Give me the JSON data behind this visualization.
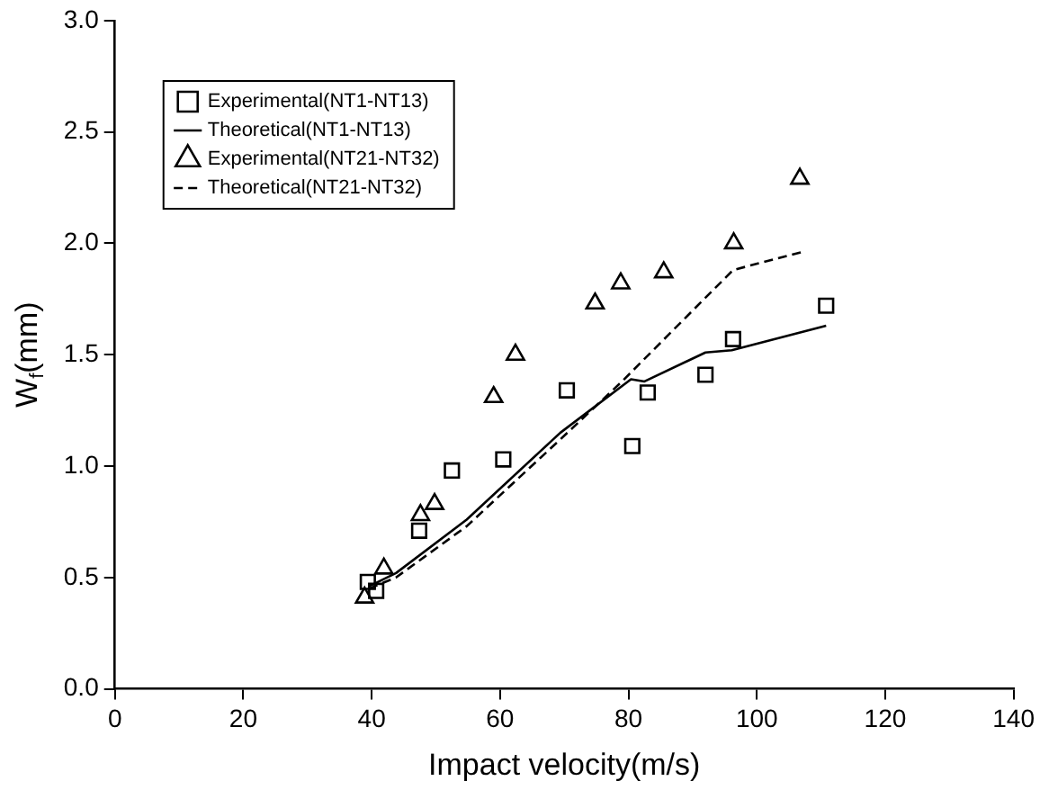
{
  "chart_data": {
    "type": "scatter",
    "xlabel": "Impact velocity(m/s)",
    "ylabel": "W$_{f}$(mm)",
    "xlim": [
      0,
      140
    ],
    "xticks": [
      0,
      20,
      40,
      60,
      80,
      100,
      120,
      140
    ],
    "ylim": [
      0,
      3
    ],
    "yticks": [
      {
        "value": 0,
        "label": "0.0"
      },
      {
        "value": 0.5,
        "label": "0.5"
      },
      {
        "value": 1,
        "label": "1.0"
      },
      {
        "value": 1.5,
        "label": "1.5"
      },
      {
        "value": 2,
        "label": "2.0"
      },
      {
        "value": 2.5,
        "label": "2.5"
      },
      {
        "value": 3,
        "label": "3.0"
      }
    ],
    "grid": false,
    "legend": "top left",
    "series": [
      {
        "name": "Experimental(NT1-NT13)",
        "marker": "square",
        "color": "#000000",
        "x": [
          39.4,
          40.7,
          47.4,
          52.5,
          60.5,
          70.4,
          80.6,
          83,
          92,
          96.3,
          110.8
        ],
        "values": [
          0.48,
          0.44,
          0.71,
          0.98,
          1.03,
          1.34,
          1.09,
          1.33,
          1.41,
          1.57,
          1.72
        ]
      },
      {
        "name": "Theoretical(NT1-NT13)",
        "type": "line",
        "marker": "none",
        "line_style": "solid",
        "color": "#000000",
        "x": [
          39.6,
          43.8,
          54.8,
          69.4,
          80.4,
          82.5,
          92,
          96.1,
          110.8
        ],
        "values": [
          0.46,
          0.52,
          0.76,
          1.15,
          1.39,
          1.38,
          1.51,
          1.52,
          1.63
        ]
      },
      {
        "name": "Experimental(NT21-NT32)",
        "marker": "triangle",
        "color": "#000000",
        "x": [
          38.9,
          41.9,
          47.6,
          49.8,
          59,
          62.4,
          74.8,
          78.8,
          85.5,
          96.4,
          106.7
        ],
        "values": [
          0.41,
          0.54,
          0.78,
          0.83,
          1.31,
          1.5,
          1.73,
          1.82,
          1.87,
          2.0,
          2.29
        ]
      },
      {
        "name": "Theoretical(NT21-NT32)",
        "type": "line",
        "marker": "none",
        "line_style": "dashed",
        "color": "#000000",
        "x": [
          39.6,
          43.8,
          54.8,
          69.4,
          79,
          96.3,
          106.9
        ],
        "values": [
          0.45,
          0.5,
          0.73,
          1.12,
          1.38,
          1.88,
          1.96
        ]
      }
    ]
  }
}
